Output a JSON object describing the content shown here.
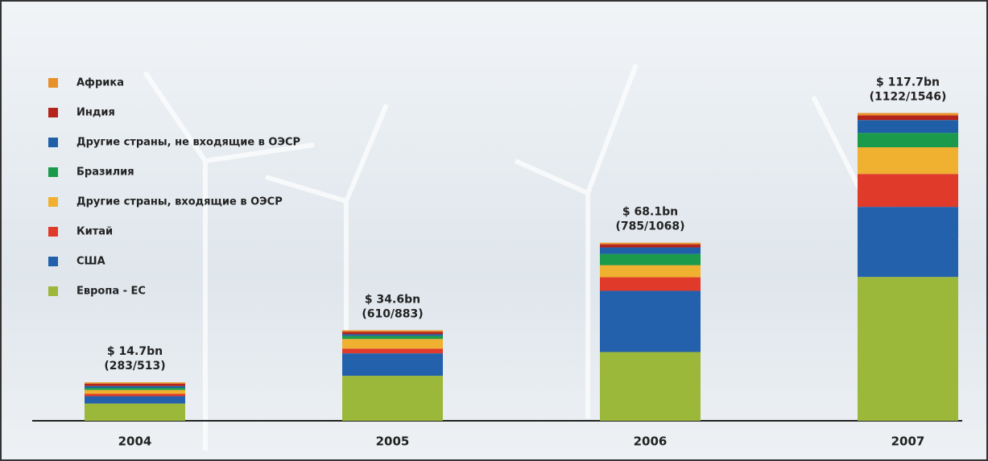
{
  "chart_data": {
    "type": "stacked_bar",
    "categories": [
      "2004",
      "2005",
      "2006",
      "2007"
    ],
    "series": [
      {
        "name": "Европа - ЕС",
        "color": "#9cb83a",
        "values": [
          6.6,
          17.2,
          26.3,
          55.0
        ]
      },
      {
        "name": "США",
        "color": "#2361ad",
        "values": [
          2.8,
          8.6,
          23.4,
          26.8
        ]
      },
      {
        "name": "Китай",
        "color": "#e03a2a",
        "values": [
          0.9,
          1.8,
          5.2,
          12.6
        ]
      },
      {
        "name": "Другие страны, входящие в ОЭСР",
        "color": "#f0b030",
        "values": [
          1.5,
          3.7,
          4.6,
          10.2
        ]
      },
      {
        "name": "Бразилия",
        "color": "#1a9a4a",
        "values": [
          0.8,
          1.2,
          4.3,
          5.5
        ]
      },
      {
        "name": "Другие страны, не входящие в ОЭСР",
        "color": "#1f5fa8",
        "values": [
          0.7,
          0.6,
          2.5,
          4.9
        ]
      },
      {
        "name": "Индия",
        "color": "#b5241c",
        "values": [
          0.9,
          0.9,
          1.2,
          1.8
        ]
      },
      {
        "name": "Африка",
        "color": "#e8912a",
        "values": [
          0.5,
          0.6,
          0.6,
          0.9
        ]
      }
    ],
    "bar_labels": [
      [
        "$ 14.7bn",
        "(283/513)"
      ],
      [
        "$ 34.6bn",
        "(610/883)"
      ],
      [
        "$ 68.1bn",
        "(785/1068)"
      ],
      [
        "$ 117.7bn",
        "(1122/1546)"
      ]
    ]
  }
}
